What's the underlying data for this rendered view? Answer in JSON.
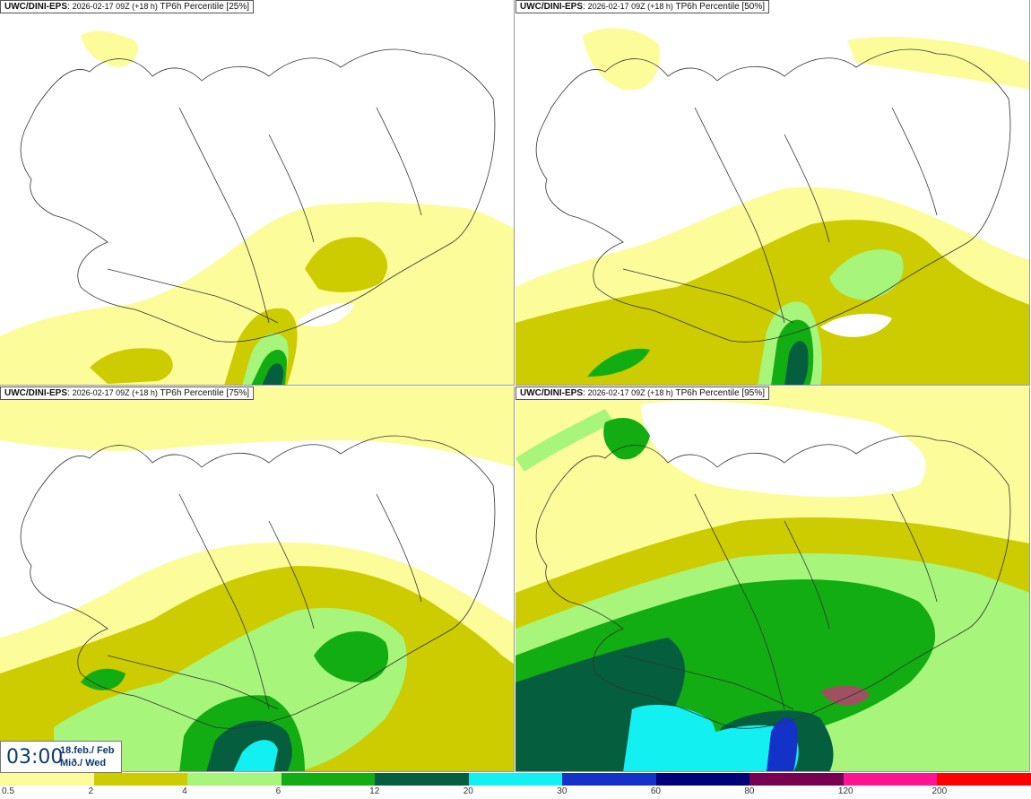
{
  "panels": [
    {
      "source": "UWC/DINI-EPS",
      "run": "2026-02-17 09Z (+18 h)",
      "product": "TP6h Percentile [25%]"
    },
    {
      "source": "UWC/DINI-EPS",
      "run": "2026-02-17 09Z (+18 h)",
      "product": "TP6h Percentile [50%]"
    },
    {
      "source": "UWC/DINI-EPS",
      "run": "2026-02-17 09Z (+18 h)",
      "product": "TP6h Percentile [75%]"
    },
    {
      "source": "UWC/DINI-EPS",
      "run": "2026-02-17 09Z (+18 h)",
      "product": "TP6h Percentile [95%]"
    }
  ],
  "time": {
    "clock": "03:00",
    "date": "18.feb./ Feb",
    "weekday": "Mið./ Wed"
  },
  "colorbar": {
    "labels": [
      "0.5",
      "2",
      "4",
      "6",
      "12",
      "20",
      "30",
      "60",
      "80",
      "120",
      "200"
    ],
    "colors": [
      "#fdfc9b",
      "#cccc00",
      "#a7f57a",
      "#12ad12",
      "#055f3f",
      "#12f0f2",
      "#1432c8",
      "#000078",
      "#780050",
      "#ff1493",
      "#ff0000"
    ]
  },
  "palette": {
    "c1": "#fdfc9b",
    "c2": "#cccc00",
    "c3": "#a7f57a",
    "c4": "#12ad12",
    "c5": "#055f3f",
    "c6": "#12f0f2",
    "c7": "#1432c8"
  }
}
